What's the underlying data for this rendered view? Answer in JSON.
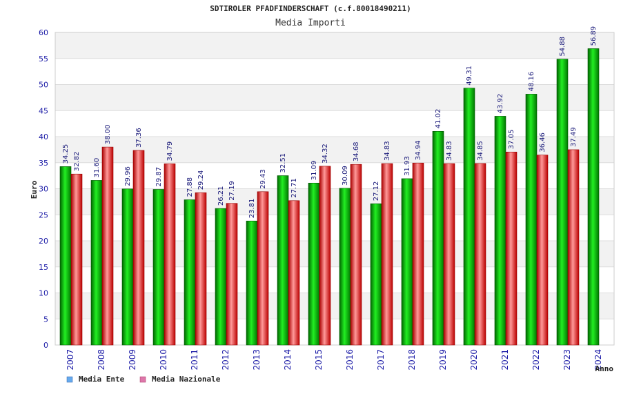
{
  "chart_data": {
    "type": "bar",
    "title": "SDTIROLER PFADFINDERSCHAFT (c.f.80018490211)",
    "subtitle": "Media Importi",
    "ylabel": "Euro",
    "xlabel": "Anno",
    "ylim": [
      0,
      60
    ],
    "yticks": [
      "0",
      "5",
      "10",
      "15",
      "20",
      "25",
      "30",
      "35",
      "40",
      "45",
      "50",
      "55",
      "60"
    ],
    "categories": [
      "2007",
      "2008",
      "2009",
      "2010",
      "2011",
      "2012",
      "2013",
      "2014",
      "2015",
      "2016",
      "2017",
      "2018",
      "2019",
      "2020",
      "2021",
      "2022",
      "2023",
      "2024"
    ],
    "series": [
      {
        "name": "Media Ente",
        "color": "#00aa00",
        "legend_color": "#66aaee",
        "values": [
          34.25,
          31.6,
          29.96,
          29.87,
          27.88,
          26.21,
          23.81,
          32.51,
          31.09,
          30.09,
          27.12,
          31.93,
          41.02,
          49.31,
          43.92,
          48.16,
          54.88,
          56.89
        ],
        "labels": [
          "34.25",
          "31.60",
          "29.96",
          "29.87",
          "27.88",
          "26.21",
          "23.81",
          "32.51",
          "31.09",
          "30.09",
          "27.12",
          "31.93",
          "41.02",
          "49.31",
          "43.92",
          "48.16",
          "54.88",
          "56.89"
        ]
      },
      {
        "name": "Media Nazionale",
        "color": "#dd1111",
        "legend_color": "#dd77aa",
        "values": [
          32.82,
          38.0,
          37.36,
          34.79,
          29.24,
          27.19,
          29.43,
          27.71,
          34.32,
          34.68,
          34.83,
          34.94,
          34.83,
          34.85,
          37.05,
          36.46,
          37.49,
          null
        ],
        "labels": [
          "32.82",
          "38.00",
          "37.36",
          "34.79",
          "29.24",
          "27.19",
          "29.43",
          "27.71",
          "34.32",
          "34.68",
          "34.83",
          "34.94",
          "34.83",
          "34.85",
          "37.05",
          "36.46",
          "37.49",
          null
        ]
      }
    ],
    "grid": true,
    "legend_position": "bottom-left"
  }
}
